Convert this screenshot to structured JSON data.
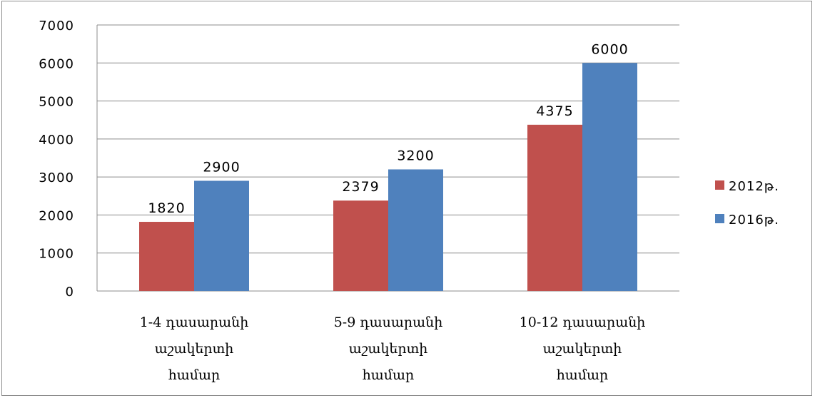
{
  "chart_data": {
    "type": "bar",
    "title": "",
    "xlabel": "",
    "ylabel": "",
    "ylim": [
      0,
      7000
    ],
    "yticks": [
      0,
      1000,
      2000,
      3000,
      4000,
      5000,
      6000,
      7000
    ],
    "grid": true,
    "legend_position": "right",
    "categories": [
      [
        "1-4 դասարանի",
        "աշակերտի",
        "համար"
      ],
      [
        "5-9 դասարանի",
        "աշակերտի",
        "համար"
      ],
      [
        "10-12 դասարանի",
        "աշակերտի",
        "համար"
      ]
    ],
    "series": [
      {
        "name": "2012թ.",
        "color": "#c0504d",
        "values": [
          1820,
          2379,
          4375
        ]
      },
      {
        "name": "2016թ.",
        "color": "#4f81bd",
        "values": [
          2900,
          3200,
          6000
        ]
      }
    ]
  }
}
